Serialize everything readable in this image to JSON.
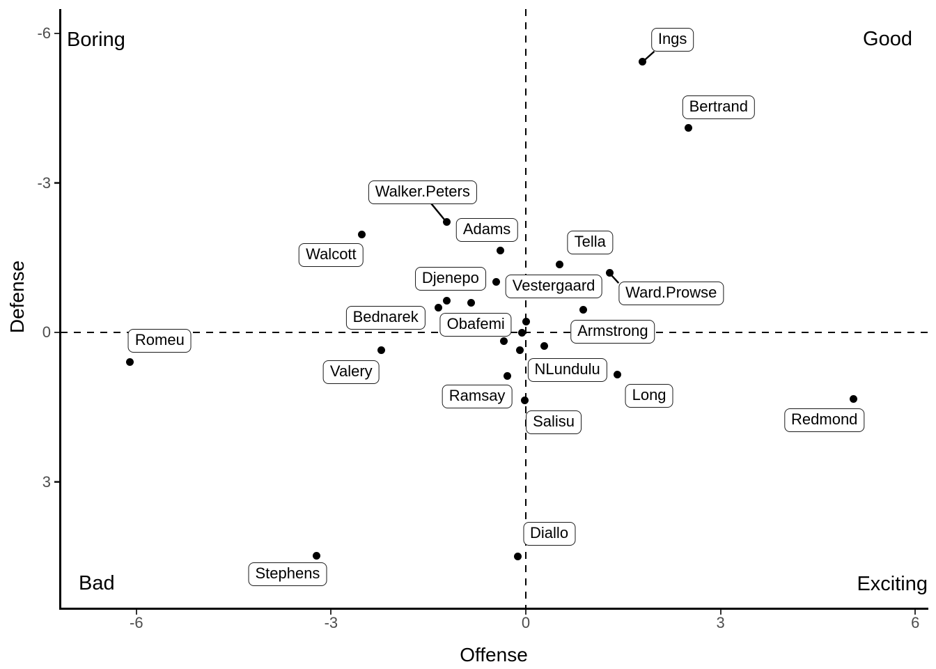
{
  "chart_data": {
    "type": "scatter",
    "title": "",
    "xlabel": "Offense",
    "ylabel": "Defense",
    "x_ticks": [
      -6,
      -3,
      0,
      3,
      6
    ],
    "y_ticks": [
      -6,
      -3,
      0,
      3
    ],
    "y_axis_reversed": true,
    "xlim": [
      -7.2,
      6.2
    ],
    "ylim": [
      -6.5,
      5.5
    ],
    "grid": false,
    "legend": "none",
    "reference_lines": {
      "vline_x": 0,
      "hline_y": 0,
      "line_style": "dashed"
    },
    "quadrants": {
      "top_left": "Boring",
      "top_right": "Good",
      "bottom_left": "Bad",
      "bottom_right": "Exciting"
    },
    "players": [
      {
        "name": "Ings",
        "offense": 1.8,
        "defense": -5.43,
        "label_at": [
          2.26,
          -5.87
        ],
        "leader": [
          1.98,
          -5.64
        ]
      },
      {
        "name": "Bertrand",
        "offense": 2.51,
        "defense": -4.11,
        "label_at": [
          2.97,
          -4.52
        ]
      },
      {
        "name": "Walker.Peters",
        "offense": -1.22,
        "defense": -2.21,
        "label_at": [
          -1.59,
          -2.81
        ],
        "leader": [
          -1.46,
          -2.59
        ]
      },
      {
        "name": "Walcott",
        "offense": -2.53,
        "defense": -1.96,
        "label_at": [
          -3.0,
          -1.55
        ]
      },
      {
        "name": "Adams",
        "offense": -0.39,
        "defense": -1.65,
        "label_at": [
          -0.6,
          -2.05
        ]
      },
      {
        "name": "Tella",
        "offense": 0.52,
        "defense": -1.37,
        "label_at": [
          0.99,
          -1.8
        ]
      },
      {
        "name": "Ward.Prowse",
        "offense": 1.29,
        "defense": -1.19,
        "label_at": [
          2.24,
          -0.79
        ],
        "leader": [
          1.43,
          -0.99
        ]
      },
      {
        "name": "Djenepo",
        "offense": -0.46,
        "defense": -1.02,
        "label_at": [
          -1.16,
          -1.07
        ]
      },
      {
        "name": "Vestergaard",
        "offense": 0.0,
        "defense": -0.21,
        "label_at": [
          0.43,
          -0.93
        ]
      },
      {
        "name": "Bednarek",
        "offense": -1.35,
        "defense": -0.5,
        "label_at": [
          -2.16,
          -0.3
        ]
      },
      {
        "name": "Obafemi",
        "offense": -0.84,
        "defense": -0.6,
        "label_at": [
          -0.77,
          -0.15
        ]
      },
      {
        "name": "Armstrong",
        "offense": 0.88,
        "defense": -0.45,
        "label_at": [
          1.34,
          -0.02
        ]
      },
      {
        "name": "Romeu",
        "offense": -6.1,
        "defense": 0.6,
        "label_at": [
          -5.64,
          0.17
        ]
      },
      {
        "name": "Valery",
        "offense": -2.23,
        "defense": 0.36,
        "label_at": [
          -2.69,
          0.8
        ]
      },
      {
        "name": "NLundulu",
        "offense": 0.28,
        "defense": 0.27,
        "label_at": [
          0.64,
          0.76
        ]
      },
      {
        "name": "Long",
        "offense": 1.41,
        "defense": 0.84,
        "label_at": [
          1.9,
          1.27
        ]
      },
      {
        "name": "Ramsay",
        "offense": -0.28,
        "defense": 0.87,
        "label_at": [
          -0.75,
          1.29
        ]
      },
      {
        "name": "Salisu",
        "offense": -0.02,
        "defense": 1.37,
        "label_at": [
          0.43,
          1.8
        ]
      },
      {
        "name": "Redmond",
        "offense": 5.05,
        "defense": 1.34,
        "label_at": [
          4.6,
          1.76
        ]
      },
      {
        "name": "Stephens",
        "offense": -3.22,
        "defense": 4.48,
        "label_at": [
          -3.67,
          4.85
        ]
      },
      {
        "name": "Diallo",
        "offense": -0.12,
        "defense": 4.49,
        "label_at": [
          0.36,
          4.04
        ]
      }
    ],
    "unlabeled_points": [
      [
        -1.22,
        -0.64
      ],
      [
        -0.06,
        0.0
      ],
      [
        -0.34,
        0.17
      ],
      [
        -0.09,
        0.36
      ]
    ]
  },
  "colors": {
    "background": "#ffffff",
    "point": "#000000",
    "axis_line": "#000000",
    "tick_label": "#4d4d4d",
    "label_border": "#1a1a1a",
    "label_fill": "#ffffff",
    "text": "#000000"
  }
}
